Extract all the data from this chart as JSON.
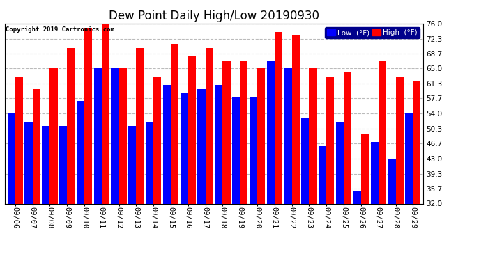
{
  "title": "Dew Point Daily High/Low 20190930",
  "copyright": "Copyright 2019 Cartronics.com",
  "dates": [
    "09/06",
    "09/07",
    "09/08",
    "09/09",
    "09/10",
    "09/11",
    "09/12",
    "09/13",
    "09/14",
    "09/15",
    "09/16",
    "09/17",
    "09/18",
    "09/19",
    "09/20",
    "09/21",
    "09/22",
    "09/23",
    "09/24",
    "09/25",
    "09/26",
    "09/27",
    "09/28",
    "09/29"
  ],
  "high": [
    63,
    60,
    65,
    70,
    75,
    77,
    65,
    70,
    63,
    71,
    68,
    70,
    67,
    67,
    65,
    74,
    73,
    65,
    63,
    64,
    49,
    67,
    63,
    62
  ],
  "low": [
    54,
    52,
    51,
    51,
    57,
    65,
    65,
    51,
    52,
    61,
    59,
    60,
    61,
    58,
    58,
    67,
    65,
    53,
    46,
    52,
    35,
    47,
    43,
    54
  ],
  "ymin": 32.0,
  "ymax": 76.0,
  "yticks": [
    32.0,
    35.7,
    39.3,
    43.0,
    46.7,
    50.3,
    54.0,
    57.7,
    61.3,
    65.0,
    68.7,
    72.3,
    76.0
  ],
  "low_color": "#0000ff",
  "high_color": "#ff0000",
  "bg_color": "#ffffff",
  "plot_bg_color": "#ffffff",
  "grid_color": "#bbbbbb",
  "bar_width": 0.45,
  "title_fontsize": 12,
  "tick_fontsize": 7.5,
  "legend_low_label": "Low  (°F)",
  "legend_high_label": "High  (°F)",
  "figwidth": 6.9,
  "figheight": 3.75,
  "dpi": 100
}
